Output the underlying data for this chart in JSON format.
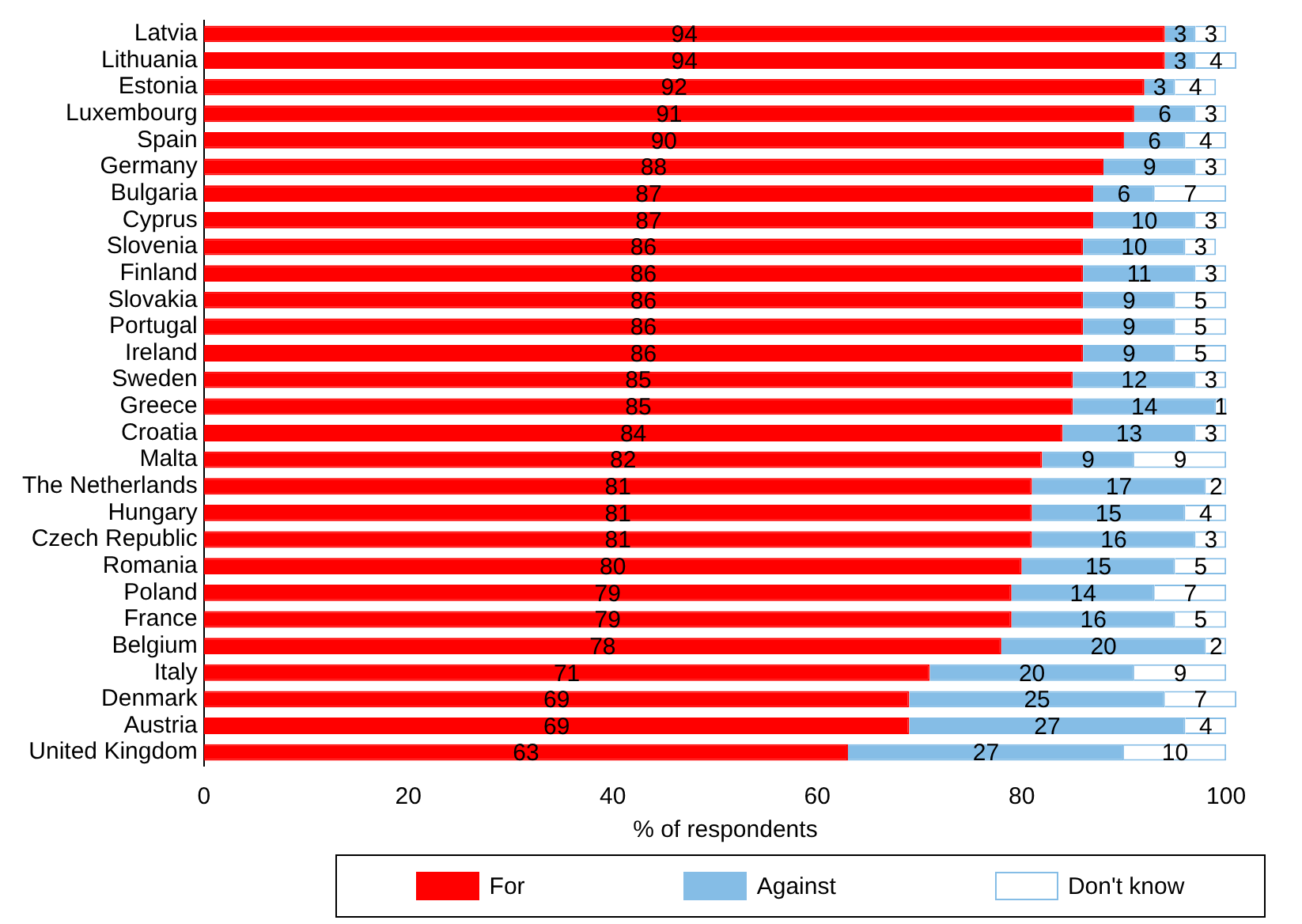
{
  "chart_data": {
    "type": "bar",
    "orientation": "horizontal",
    "stacked": true,
    "xlabel": "% of respondents",
    "categories": [
      "Latvia",
      "Lithuania",
      "Estonia",
      "Luxembourg",
      "Spain",
      "Germany",
      "Bulgaria",
      "Cyprus",
      "Slovenia",
      "Finland",
      "Slovakia",
      "Portugal",
      "Ireland",
      "Sweden",
      "Greece",
      "Croatia",
      "Malta",
      "The Netherlands",
      "Hungary",
      "Czech Republic",
      "Romania",
      "Poland",
      "France",
      "Belgium",
      "Italy",
      "Denmark",
      "Austria",
      "United Kingdom"
    ],
    "series": [
      {
        "name": "For",
        "color": "#ff0000",
        "values": [
          94,
          94,
          92,
          91,
          90,
          88,
          87,
          87,
          86,
          86,
          86,
          86,
          86,
          85,
          85,
          84,
          82,
          81,
          81,
          81,
          80,
          79,
          79,
          78,
          71,
          69,
          69,
          63
        ]
      },
      {
        "name": "Against",
        "color": "#85bde6",
        "values": [
          3,
          3,
          3,
          6,
          6,
          9,
          6,
          10,
          10,
          11,
          9,
          9,
          9,
          12,
          14,
          13,
          9,
          17,
          15,
          16,
          15,
          14,
          16,
          20,
          20,
          25,
          27,
          27
        ]
      },
      {
        "name": "Don't know",
        "color": "#ffffff",
        "values": [
          3,
          4,
          4,
          3,
          4,
          3,
          7,
          3,
          3,
          3,
          5,
          5,
          5,
          3,
          1,
          3,
          9,
          2,
          4,
          3,
          5,
          7,
          5,
          2,
          9,
          7,
          4,
          10
        ]
      }
    ],
    "xlim": [
      0,
      102
    ],
    "xticks": [
      0,
      20,
      40,
      60,
      80,
      100
    ],
    "grid": false,
    "legend": "bottom",
    "data_labels": true
  }
}
